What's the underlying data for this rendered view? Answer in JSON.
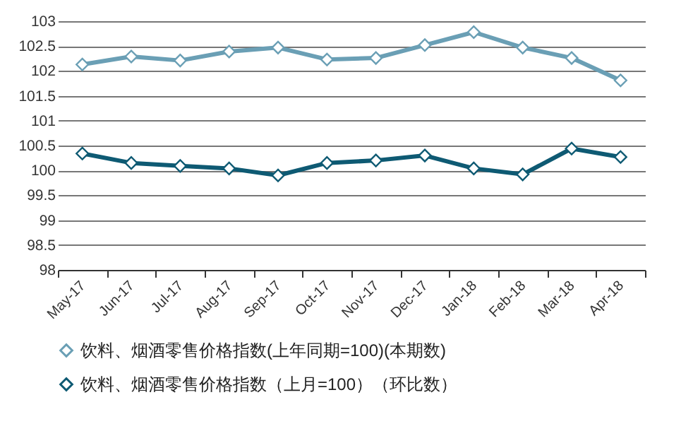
{
  "chart_data": {
    "type": "line",
    "categories": [
      "May-17",
      "Jun-17",
      "Jul-17",
      "Aug-17",
      "Sep-17",
      "Oct-17",
      "Nov-17",
      "Dec-17",
      "Jan-18",
      "Feb-18",
      "Mar-18",
      "Apr-18"
    ],
    "series": [
      {
        "name": "饮料、烟酒零售价格指数(上年同期=100)(本期数)",
        "color": "#6a9fb5",
        "values": [
          102.13,
          102.29,
          102.21,
          102.39,
          102.47,
          102.23,
          102.26,
          102.52,
          102.78,
          102.47,
          102.26,
          101.81
        ]
      },
      {
        "name": "饮料、烟酒零售价格指数（上月=100）（环比数）",
        "color": "#0e5a73",
        "values": [
          100.34,
          100.15,
          100.09,
          100.04,
          99.9,
          100.15,
          100.2,
          100.3,
          100.04,
          99.92,
          100.44,
          100.27
        ]
      }
    ],
    "ylim": [
      98,
      103
    ],
    "yticks": [
      98,
      98.5,
      99,
      99.5,
      100,
      100.5,
      101,
      101.5,
      102,
      102.5,
      103
    ],
    "grid": "y",
    "legend": "bottom",
    "marker": "diamond",
    "line_style": "solid"
  }
}
